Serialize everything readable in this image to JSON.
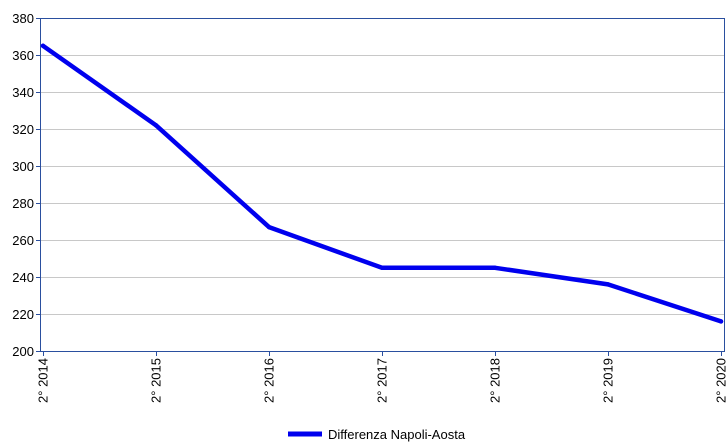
{
  "chart_data": {
    "type": "line",
    "title": "",
    "xlabel": "",
    "ylabel": "",
    "categories": [
      "2° 2014",
      "2° 2015",
      "2° 2016",
      "2° 2017",
      "2° 2018",
      "2° 2019",
      "2° 2020"
    ],
    "series": [
      {
        "name": "Differenza Napoli-Aosta",
        "color": "#0000ee",
        "values": [
          365,
          322,
          267,
          245,
          245,
          236,
          216
        ]
      }
    ],
    "ylim": [
      200,
      380
    ],
    "yticks": [
      200,
      220,
      240,
      260,
      280,
      300,
      320,
      340,
      360,
      380
    ],
    "grid": true,
    "legend": "bottom-center",
    "colors": {
      "axis": "#2a4f9f",
      "grid": "#c8c8c8",
      "line": "#0000ee"
    }
  }
}
